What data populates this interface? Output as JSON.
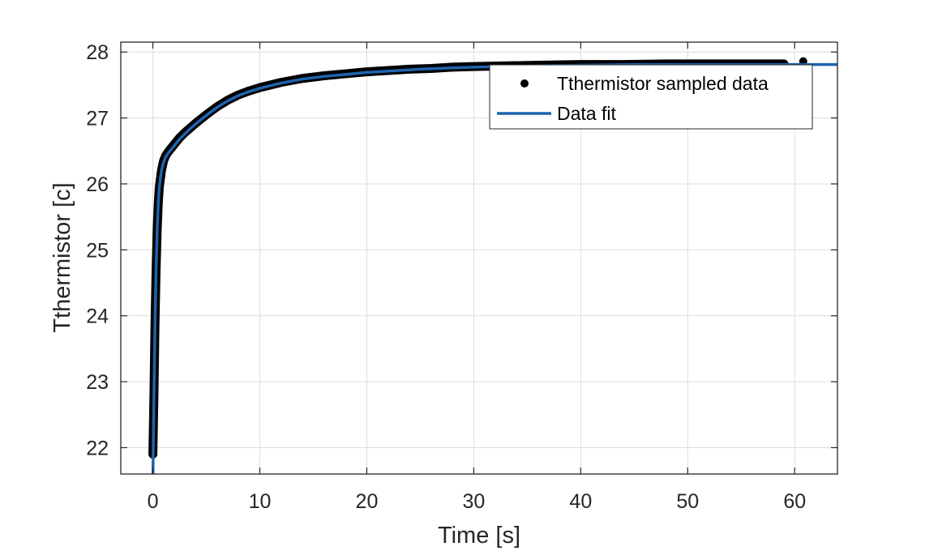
{
  "chart_data": {
    "type": "scatter",
    "title": "",
    "xlabel": "Time [s]",
    "ylabel": "Tthermistor [c]",
    "xlim": [
      -3,
      64
    ],
    "ylim": [
      21.6,
      28.15
    ],
    "x_ticks": [
      0,
      10,
      20,
      30,
      40,
      50,
      60
    ],
    "y_ticks": [
      22,
      23,
      24,
      25,
      26,
      27,
      28
    ],
    "grid": true,
    "legend_position": "top-right",
    "series": [
      {
        "name": "Tthermistor sampled data",
        "style": "markers",
        "color": "#000000",
        "x": [
          0.0,
          0.1,
          0.2,
          0.3,
          0.4,
          0.5,
          0.6,
          0.8,
          1.0,
          1.2,
          1.5,
          2.0,
          2.5,
          3.0,
          3.5,
          4.0,
          5.0,
          6.0,
          7.0,
          8.0,
          9.0,
          10.0,
          11.0,
          12.0,
          14.0,
          16.0,
          18.0,
          20.0,
          22.0,
          24.0,
          26.0,
          28.0,
          30.0,
          33.0,
          36.0,
          40.0,
          44.0,
          48.0,
          52.0,
          56.0,
          59.0,
          60.8
        ],
        "y": [
          21.9,
          22.8,
          23.9,
          24.7,
          25.3,
          25.7,
          25.95,
          26.2,
          26.35,
          26.43,
          26.5,
          26.6,
          26.7,
          26.78,
          26.85,
          26.92,
          27.05,
          27.17,
          27.27,
          27.35,
          27.41,
          27.46,
          27.5,
          27.54,
          27.6,
          27.64,
          27.67,
          27.7,
          27.72,
          27.74,
          27.75,
          27.77,
          27.78,
          27.79,
          27.8,
          27.81,
          27.81,
          27.82,
          27.82,
          27.82,
          27.82,
          27.86
        ]
      },
      {
        "name": "Data fit",
        "style": "line",
        "color": "#1f64ad",
        "x": [
          0.0,
          0.1,
          0.2,
          0.3,
          0.4,
          0.5,
          0.6,
          0.8,
          1.0,
          1.2,
          1.5,
          2.0,
          2.5,
          3.0,
          3.5,
          4.0,
          5.0,
          6.0,
          7.0,
          8.0,
          9.0,
          10.0,
          12.0,
          14.0,
          16.0,
          18.0,
          20.0,
          22.0,
          25.0,
          28.0,
          30.0,
          35.0,
          40.0,
          45.0,
          50.0,
          55.0,
          60.0,
          64.0
        ],
        "y": [
          21.5,
          22.8,
          23.9,
          24.7,
          25.3,
          25.7,
          25.95,
          26.2,
          26.33,
          26.41,
          26.48,
          26.58,
          26.68,
          26.76,
          26.84,
          26.91,
          27.04,
          27.16,
          27.26,
          27.34,
          27.4,
          27.45,
          27.53,
          27.59,
          27.63,
          27.66,
          27.69,
          27.71,
          27.74,
          27.76,
          27.77,
          27.79,
          27.8,
          27.81,
          27.81,
          27.81,
          27.81,
          27.81
        ]
      }
    ]
  }
}
